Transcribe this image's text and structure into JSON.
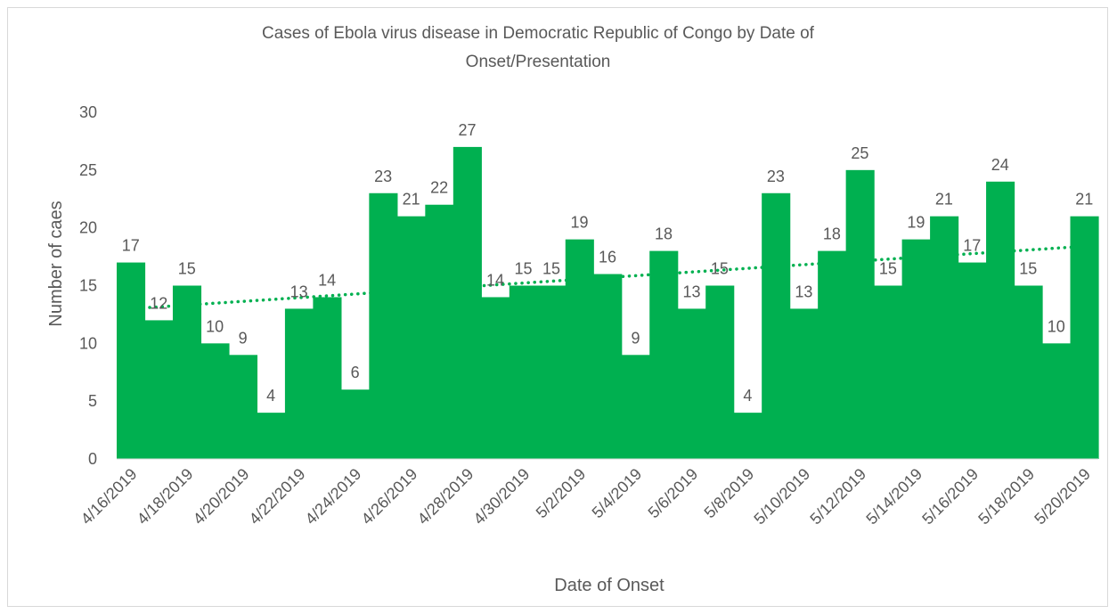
{
  "chart_data": {
    "type": "area",
    "title_lines": [
      "Cases of Ebola virus disease in Democratic Republic of Congo by Date of",
      "Onset/Presentation"
    ],
    "xlabel": "Date of Onset",
    "ylabel": "Number of caes",
    "ylim": [
      0,
      30
    ],
    "yticks": [
      "0",
      "5",
      "10",
      "15",
      "20",
      "25",
      "30"
    ],
    "x": [
      "4/16/2019",
      "4/17/2019",
      "4/18/2019",
      "4/19/2019",
      "4/20/2019",
      "4/21/2019",
      "4/22/2019",
      "4/23/2019",
      "4/24/2019",
      "4/25/2019",
      "4/26/2019",
      "4/27/2019",
      "4/28/2019",
      "4/29/2019",
      "4/30/2019",
      "5/1/2019",
      "5/2/2019",
      "5/3/2019",
      "5/4/2019",
      "5/5/2019",
      "5/6/2019",
      "5/7/2019",
      "5/8/2019",
      "5/9/2019",
      "5/10/2019",
      "5/11/2019",
      "5/12/2019",
      "5/13/2019",
      "5/14/2019",
      "5/15/2019",
      "5/16/2019",
      "5/17/2019",
      "5/18/2019",
      "5/19/2019",
      "5/20/2019"
    ],
    "xtick_labels": [
      "4/16/2019",
      "4/18/2019",
      "4/20/2019",
      "4/22/2019",
      "4/24/2019",
      "4/26/2019",
      "4/28/2019",
      "4/30/2019",
      "5/2/2019",
      "5/4/2019",
      "5/6/2019",
      "5/8/2019",
      "5/10/2019",
      "5/12/2019",
      "5/14/2019",
      "5/16/2019",
      "5/18/2019",
      "5/20/2019"
    ],
    "values": [
      17,
      12,
      15,
      10,
      9,
      4,
      13,
      14,
      6,
      23,
      21,
      22,
      27,
      14,
      15,
      15,
      19,
      16,
      9,
      18,
      13,
      15,
      4,
      23,
      13,
      18,
      25,
      15,
      19,
      21,
      17,
      24,
      15,
      10,
      21
    ],
    "data_labels": [
      "17",
      "12",
      "15",
      "10",
      "9",
      "4",
      "13",
      "14",
      "6",
      "23",
      "21",
      "22",
      "27",
      "14",
      "15",
      "15",
      "19",
      "16",
      "9",
      "18",
      "13",
      "15",
      "4",
      "23",
      "13",
      "18",
      "25",
      "15",
      "19",
      "21",
      "17",
      "24",
      "15",
      "10",
      "21"
    ],
    "trendline": {
      "type": "linear",
      "style": "dotted",
      "start": 13.0,
      "end": 18.4
    },
    "colors": {
      "fill": "#00b050",
      "trend": "#00b050",
      "text": "#595959",
      "axis": "#d9d9d9"
    },
    "grid": false,
    "legend": "none"
  }
}
